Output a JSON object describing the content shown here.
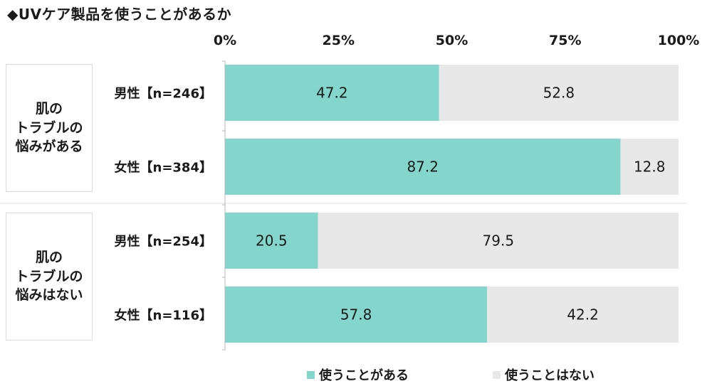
{
  "title": "◆UVケア製品を使うことがあるか",
  "groups": [
    {
      "label": "肌の\nトラブルの\n悩みがある"
    },
    {
      "label": "肌の\nトラブルの\n悩みはない"
    }
  ],
  "colors": {
    "use": "#84d5cc",
    "nouse": "#e8e8e8"
  },
  "chart_data": {
    "type": "bar",
    "orientation": "horizontal",
    "stacked": true,
    "unit": "%",
    "xlim": [
      0,
      100
    ],
    "ticks": [
      "0%",
      "25%",
      "50%",
      "75%",
      "100%"
    ],
    "categories": [
      "男性【n=246】",
      "女性【n=384】",
      "男性【n=254】",
      "女性【n=116】"
    ],
    "series": [
      {
        "name": "使うことがある",
        "values": [
          47.2,
          87.2,
          20.5,
          57.8
        ]
      },
      {
        "name": "使うことはない",
        "values": [
          52.8,
          12.8,
          79.5,
          42.2
        ]
      }
    ],
    "legend_position": "bottom",
    "grid": false
  }
}
